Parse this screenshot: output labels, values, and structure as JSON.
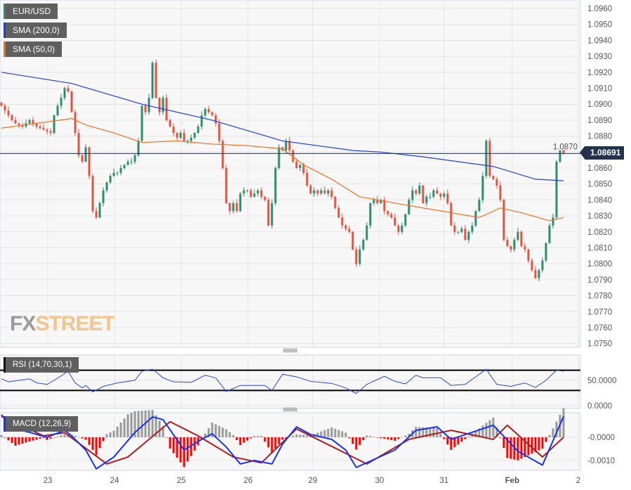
{
  "legends": {
    "main": "EUR/USD",
    "sma200": "SMA (200,0)",
    "sma50": "SMA (50,0)",
    "rsi": "RSI (14,70,30,1)",
    "macd": "MACD (12,26,9)"
  },
  "watermark": {
    "part1": "FX",
    "part2": "STREET"
  },
  "current_price": "1.08691",
  "colors": {
    "up": "#2e8b6e",
    "down": "#e0533f",
    "sma200": "#1f3fe8",
    "sma50": "#f07020",
    "rsi": "#2b45e0",
    "macd": "#1533f0",
    "signal": "#b01c1c",
    "hist_pos": "#999999",
    "hist_neg": "#ff0000",
    "price_tag": "#25324d"
  },
  "chart_data": [
    {
      "type": "candlestick",
      "title": "EUR/USD",
      "ylim": [
        1.075,
        1.096
      ],
      "y_ticks": [
        "1.0960",
        "1.0950",
        "1.0940",
        "1.0930",
        "1.0920",
        "1.0910",
        "1.0900",
        "1.0890",
        "1.0880",
        "1.0870",
        "1.0860",
        "1.0850",
        "1.0840",
        "1.0830",
        "1.0820",
        "1.0810",
        "1.0800",
        "1.0790",
        "1.0780",
        "1.0770",
        "1.0760",
        "1.0750"
      ],
      "x_ticks": [
        "23",
        "24",
        "25",
        "26",
        "29",
        "30",
        "31",
        "Feb",
        "2"
      ],
      "grid": true,
      "closes": [
        1.0899,
        1.0896,
        1.0893,
        1.089,
        1.0888,
        1.0887,
        1.0886,
        1.0888,
        1.089,
        1.0888,
        1.0886,
        1.0885,
        1.0884,
        1.0883,
        1.0882,
        1.0893,
        1.0899,
        1.0904,
        1.091,
        1.0908,
        1.0895,
        1.0882,
        1.0868,
        1.0864,
        1.0873,
        1.0855,
        1.0833,
        1.0829,
        1.0838,
        1.0846,
        1.0851,
        1.0855,
        1.0857,
        1.0857,
        1.086,
        1.0862,
        1.0864,
        1.0864,
        1.0868,
        1.0877,
        1.0899,
        1.0895,
        1.0904,
        1.0926,
        1.0904,
        1.0895,
        1.0904,
        1.089,
        1.0886,
        1.0882,
        1.0879,
        1.0882,
        1.0877,
        1.0877,
        1.0879,
        1.0882,
        1.0886,
        1.0893,
        1.0897,
        1.0895,
        1.0893,
        1.0888,
        1.0877,
        1.086,
        1.0838,
        1.0833,
        1.0838,
        1.0833,
        1.0844,
        1.0846,
        1.0846,
        1.0842,
        1.0844,
        1.0846,
        1.0842,
        1.084,
        1.0824,
        1.0838,
        1.086,
        1.0873,
        1.0871,
        1.0877,
        1.0871,
        1.0864,
        1.086,
        1.0862,
        1.0857,
        1.0849,
        1.0844,
        1.0846,
        1.0844,
        1.0846,
        1.0844,
        1.0846,
        1.0842,
        1.0835,
        1.0829,
        1.0824,
        1.0822,
        1.082,
        1.0809,
        1.08,
        1.0809,
        1.0815,
        1.0824,
        1.0838,
        1.084,
        1.0838,
        1.084,
        1.0833,
        1.0831,
        1.0829,
        1.0824,
        1.082,
        1.0824,
        1.0831,
        1.084,
        1.0846,
        1.0844,
        1.0849,
        1.0838,
        1.0842,
        1.0842,
        1.0846,
        1.0844,
        1.0842,
        1.0844,
        1.0838,
        1.0824,
        1.082,
        1.082,
        1.0822,
        1.0815,
        1.082,
        1.0824,
        1.0833,
        1.084,
        1.0855,
        1.0877,
        1.0855,
        1.0853,
        1.0849,
        1.084,
        1.0815,
        1.0811,
        1.0809,
        1.0815,
        1.082,
        1.0811,
        1.0809,
        1.0802,
        1.0796,
        1.0791,
        1.0796,
        1.0802,
        1.0813,
        1.0824,
        1.0829,
        1.0864,
        1.0873,
        1.0869
      ],
      "sma200": [
        [
          0,
          1.092
        ],
        [
          20,
          1.0913
        ],
        [
          40,
          1.09
        ],
        [
          60,
          1.089
        ],
        [
          80,
          1.0877
        ],
        [
          100,
          1.0871
        ],
        [
          108,
          1.087
        ],
        [
          120,
          1.0867
        ],
        [
          140,
          1.0861
        ],
        [
          152,
          1.0853
        ],
        [
          160,
          1.0852
        ]
      ],
      "sma50": [
        [
          0,
          1.0885
        ],
        [
          10,
          1.0888
        ],
        [
          20,
          1.0891
        ],
        [
          24,
          1.0887
        ],
        [
          32,
          1.0882
        ],
        [
          40,
          1.0876
        ],
        [
          50,
          1.0877
        ],
        [
          60,
          1.0875
        ],
        [
          70,
          1.0874
        ],
        [
          80,
          1.0872
        ],
        [
          86,
          1.0862
        ],
        [
          94,
          1.0853
        ],
        [
          102,
          1.0842
        ],
        [
          112,
          1.0838
        ],
        [
          120,
          1.0835
        ],
        [
          128,
          1.0832
        ],
        [
          136,
          1.0829
        ],
        [
          142,
          1.0835
        ],
        [
          148,
          1.0832
        ],
        [
          156,
          1.0827
        ],
        [
          160,
          1.0829
        ]
      ]
    },
    {
      "type": "line",
      "title": "RSI (14,70,30,1)",
      "ylim": [
        0,
        100
      ],
      "levels": [
        70,
        30
      ],
      "y_ticks": [
        "50.0000",
        "0.0000"
      ],
      "values": [
        [
          0,
          53
        ],
        [
          2,
          47
        ],
        [
          5,
          50
        ],
        [
          8,
          53
        ],
        [
          10,
          45
        ],
        [
          13,
          42
        ],
        [
          15,
          50
        ],
        [
          19,
          68
        ],
        [
          21,
          45
        ],
        [
          23,
          35
        ],
        [
          24,
          40
        ],
        [
          26,
          27
        ],
        [
          29,
          38
        ],
        [
          33,
          45
        ],
        [
          38,
          50
        ],
        [
          40,
          68
        ],
        [
          43,
          72
        ],
        [
          46,
          55
        ],
        [
          49,
          47
        ],
        [
          54,
          46
        ],
        [
          58,
          60
        ],
        [
          61,
          55
        ],
        [
          64,
          28
        ],
        [
          68,
          40
        ],
        [
          75,
          40
        ],
        [
          77,
          30
        ],
        [
          80,
          62
        ],
        [
          84,
          57
        ],
        [
          88,
          48
        ],
        [
          94,
          44
        ],
        [
          98,
          35
        ],
        [
          101,
          24
        ],
        [
          104,
          42
        ],
        [
          109,
          58
        ],
        [
          112,
          48
        ],
        [
          115,
          43
        ],
        [
          118,
          60
        ],
        [
          120,
          55
        ],
        [
          125,
          55
        ],
        [
          128,
          40
        ],
        [
          132,
          42
        ],
        [
          138,
          72
        ],
        [
          141,
          42
        ],
        [
          145,
          38
        ],
        [
          149,
          45
        ],
        [
          152,
          36
        ],
        [
          155,
          50
        ],
        [
          158,
          70
        ],
        [
          160,
          68
        ]
      ]
    },
    {
      "type": "macd",
      "title": "MACD (12,26,9)",
      "y_ticks": [
        "-0.0000",
        "-0.0010"
      ],
      "ylim": [
        -0.0016,
        0.0011
      ],
      "macd": [
        [
          0,
          0.00097
        ],
        [
          4,
          0.00036
        ],
        [
          8,
          0.00021
        ],
        [
          13,
          0
        ],
        [
          18,
          0.0003
        ],
        [
          20,
          6e-05
        ],
        [
          24,
          -0.00055
        ],
        [
          27,
          -0.00136
        ],
        [
          32,
          -0.00085
        ],
        [
          38,
          0.00021
        ],
        [
          43,
          0.00088
        ],
        [
          46,
          0.00076
        ],
        [
          52,
          -0.00055
        ],
        [
          57,
          -9e-05
        ],
        [
          60,
          0.00015
        ],
        [
          64,
          -0.00042
        ],
        [
          68,
          -0.00115
        ],
        [
          72,
          -0.001
        ],
        [
          77,
          -0.00115
        ],
        [
          80,
          -0.0003
        ],
        [
          84,
          0.00045
        ],
        [
          88,
          0.00012
        ],
        [
          94,
          -9e-05
        ],
        [
          98,
          -0.00055
        ],
        [
          101,
          -0.0013
        ],
        [
          112,
          -0.00055
        ],
        [
          118,
          0.0003
        ],
        [
          124,
          0.00045
        ],
        [
          128,
          -9e-05
        ],
        [
          140,
          0.00052
        ],
        [
          147,
          -0.0006
        ],
        [
          154,
          -0.0012
        ],
        [
          160,
          0.0009
        ]
      ],
      "signal": [
        [
          0,
          0.0009
        ],
        [
          12,
          6e-05
        ],
        [
          18,
          0.0002
        ],
        [
          30,
          -0.00115
        ],
        [
          36,
          -0.00085
        ],
        [
          48,
          0.00067
        ],
        [
          56,
          6e-05
        ],
        [
          66,
          -0.00085
        ],
        [
          74,
          -0.0011
        ],
        [
          84,
          0.00036
        ],
        [
          92,
          -0.00024
        ],
        [
          104,
          -0.00115
        ],
        [
          116,
          -9e-05
        ],
        [
          128,
          0.0003
        ],
        [
          140,
          -9e-05
        ],
        [
          144,
          0.00052
        ],
        [
          154,
          -0.00085
        ],
        [
          160,
          0
        ]
      ]
    }
  ]
}
